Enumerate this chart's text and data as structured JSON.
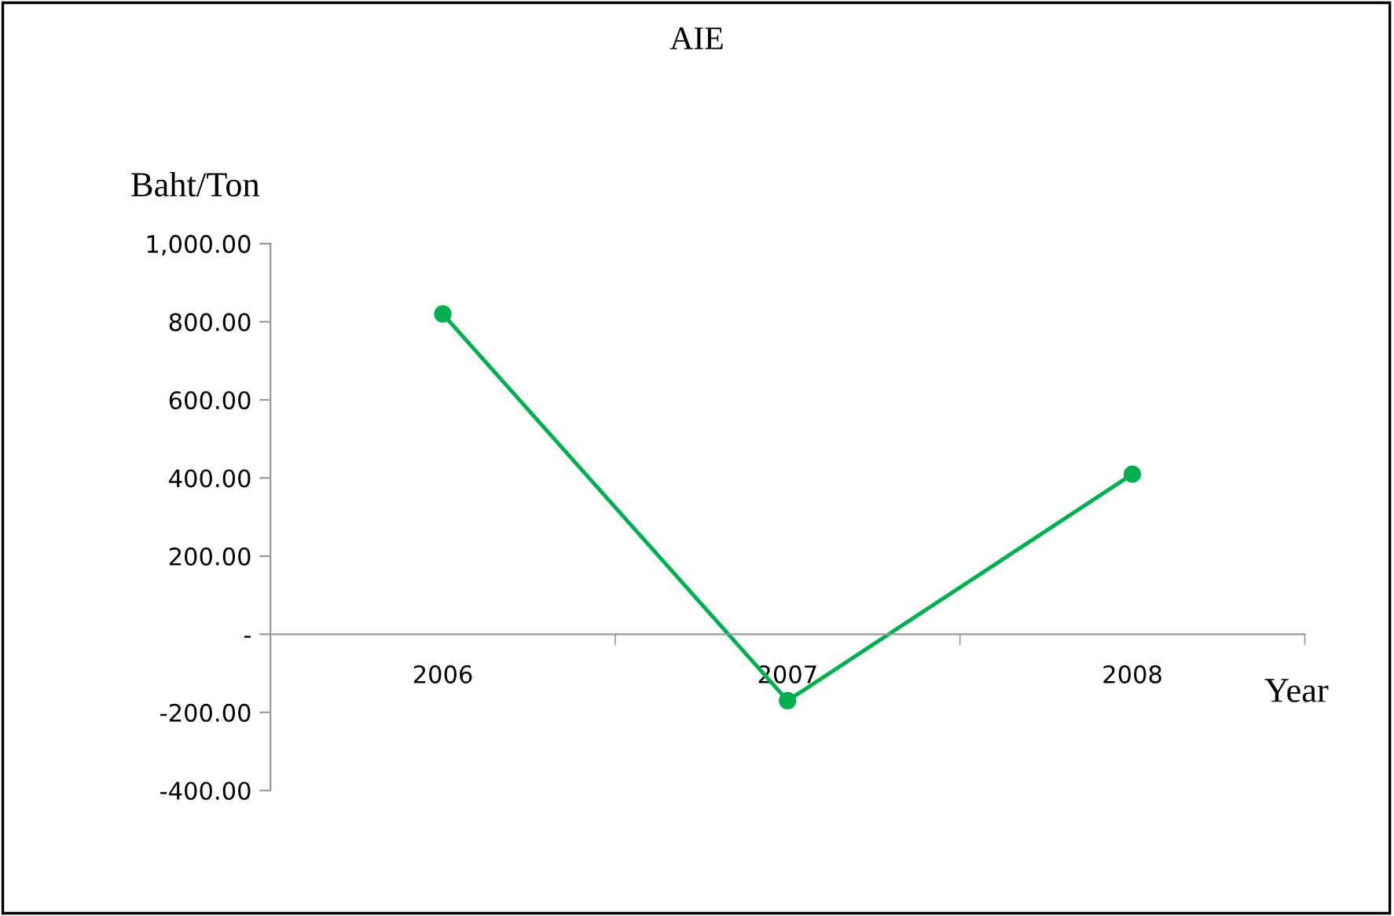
{
  "chart_data": {
    "type": "line",
    "title": "AIE",
    "ylabel": "Baht/Ton",
    "xlabel": "Year",
    "categories": [
      "2006",
      "2007",
      "2008"
    ],
    "series": [
      {
        "color": "#00b050",
        "values": [
          820,
          -170,
          410
        ]
      }
    ],
    "ylim": [
      -400,
      1000
    ],
    "yticks": [
      {
        "value": -400,
        "label": "-400.00"
      },
      {
        "value": -200,
        "label": "-200.00"
      },
      {
        "value": 0,
        "label": "-"
      },
      {
        "value": 200,
        "label": "200.00"
      },
      {
        "value": 400,
        "label": "400.00"
      },
      {
        "value": 600,
        "label": "600.00"
      },
      {
        "value": 800,
        "label": "800.00"
      },
      {
        "value": 1000,
        "label": "1,000.00"
      }
    ],
    "grid": false,
    "legend": false,
    "marker": "circle",
    "line_style": "solid"
  }
}
